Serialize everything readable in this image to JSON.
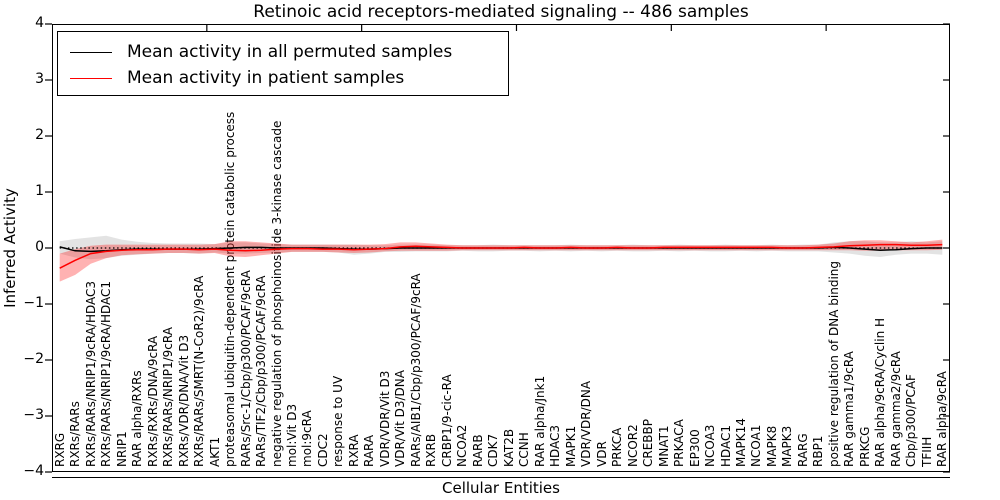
{
  "title": "Retinoic acid receptors-mediated signaling -- 486 samples",
  "axes": {
    "xlabel": "Cellular Entities",
    "ylabel": "Inferred Activity",
    "yticklabels": [
      "4",
      "3",
      "2",
      "1",
      "0",
      "−1",
      "−2",
      "−3",
      "−4"
    ],
    "ylim": [
      -4,
      4
    ],
    "grid": false
  },
  "legend": {
    "position": "upper left",
    "items": [
      {
        "label": "Mean activity in all permuted samples",
        "color": "#000000"
      },
      {
        "label": "Mean activity in patient samples",
        "color": "#ff0000"
      }
    ]
  },
  "chart_data": {
    "type": "line",
    "title": "Retinoic acid receptors-mediated signaling -- 486 samples",
    "xlabel": "Cellular Entities",
    "ylabel": "Inferred Activity",
    "ylim": [
      -4,
      4
    ],
    "zero_reference_line": {
      "y": 0,
      "style": "dotted",
      "color": "#000000"
    },
    "categories": [
      "RXRG",
      "RXRs/RARs",
      "RXRs/RARs/NRIP1/9cRA/HDAC3",
      "RXRs/RARs/NRIP1/9cRA/HDAC1",
      "NRIP1",
      "RAR alpha/RXRs",
      "RXRs/RXRs/DNA/9cRA",
      "RXRs/RARs/NRIP1/9cRA",
      "RXRs/VDR/DNA/Vit D3",
      "RXRs/RARs/SMRT(N-CoR2)/9cRA",
      "AKT1",
      "proteasomal ubiquitin-dependent protein catabolic process",
      "RARs/Src-1/Cbp/p300/PCAF/9cRA",
      "RARs/TIF2/Cbp/p300/PCAF/9cRA",
      "negative regulation of phosphoinositide 3-kinase cascade",
      "mol:Vit D3",
      "mol:9cRA",
      "CDC2",
      "response to UV",
      "RXRA",
      "RARA",
      "VDR/VDR/Vit D3",
      "VDR/Vit D3/DNA",
      "RARs/AIB1/Cbp/p300/PCAF/9cRA",
      "RXRB",
      "CRBP1/9-cic-RA",
      "NCOA2",
      "RARB",
      "CDK7",
      "KAT2B",
      "CCNH",
      "RAR alpha/Jnk1",
      "HDAC3",
      "MAPK1",
      "VDR/VDR/DNA",
      "VDR",
      "PRKCA",
      "NCOR2",
      "CREBBP",
      "MNAT1",
      "PRKACA",
      "EP300",
      "NCOA3",
      "HDAC1",
      "MAPK14",
      "NCOA1",
      "MAPK8",
      "MAPK3",
      "RARG",
      "RBP1",
      "positive regulation of DNA binding",
      "RAR gamma1/9cRA",
      "PRKCG",
      "RAR alpha/9cRA/Cyclin H",
      "RAR gamma2/9cRA",
      "Cbp/p300/PCAF",
      "TFIIH",
      "RAR alpha/9cRA"
    ],
    "series": [
      {
        "name": "Mean activity in all permuted samples",
        "color": "#000000",
        "band_color": "#999999",
        "band_opacity": 0.28,
        "mean": [
          0.02,
          -0.05,
          -0.06,
          -0.05,
          -0.03,
          -0.02,
          -0.02,
          -0.02,
          -0.02,
          -0.02,
          -0.01,
          0.0,
          0.01,
          0.01,
          0.0,
          0.0,
          0.0,
          0.0,
          -0.01,
          -0.02,
          -0.02,
          -0.01,
          0.0,
          0.0,
          0.0,
          0.0,
          0.0,
          0.0,
          0.0,
          0.0,
          0.0,
          0.0,
          0.0,
          0.0,
          0.0,
          0.0,
          0.0,
          0.0,
          0.0,
          0.0,
          0.0,
          0.0,
          0.0,
          0.0,
          0.0,
          0.0,
          0.0,
          0.0,
          0.0,
          0.0,
          0.01,
          0.0,
          -0.02,
          -0.04,
          -0.03,
          -0.01,
          0.0,
          0.0
        ],
        "upper": [
          0.12,
          0.16,
          0.19,
          0.22,
          0.15,
          0.11,
          0.09,
          0.08,
          0.08,
          0.08,
          0.07,
          0.1,
          0.1,
          0.08,
          0.07,
          0.06,
          0.06,
          0.06,
          0.06,
          0.06,
          0.05,
          0.05,
          0.06,
          0.06,
          0.06,
          0.05,
          0.05,
          0.05,
          0.06,
          0.05,
          0.05,
          0.05,
          0.05,
          0.06,
          0.05,
          0.05,
          0.05,
          0.06,
          0.05,
          0.05,
          0.06,
          0.05,
          0.05,
          0.06,
          0.05,
          0.05,
          0.06,
          0.05,
          0.06,
          0.06,
          0.1,
          0.12,
          0.12,
          0.1,
          0.1,
          0.12,
          0.1,
          0.12
        ],
        "lower": [
          -0.1,
          -0.17,
          -0.2,
          -0.18,
          -0.14,
          -0.12,
          -0.1,
          -0.09,
          -0.09,
          -0.1,
          -0.08,
          -0.1,
          -0.1,
          -0.09,
          -0.08,
          -0.07,
          -0.07,
          -0.07,
          -0.08,
          -0.12,
          -0.1,
          -0.07,
          -0.07,
          -0.06,
          -0.06,
          -0.06,
          -0.05,
          -0.06,
          -0.06,
          -0.05,
          -0.05,
          -0.06,
          -0.05,
          -0.06,
          -0.05,
          -0.06,
          -0.05,
          -0.06,
          -0.06,
          -0.05,
          -0.06,
          -0.05,
          -0.06,
          -0.06,
          -0.05,
          -0.06,
          -0.05,
          -0.06,
          -0.06,
          -0.06,
          -0.08,
          -0.1,
          -0.14,
          -0.16,
          -0.12,
          -0.1,
          -0.1,
          -0.12
        ]
      },
      {
        "name": "Mean activity in patient samples",
        "color": "#ff0000",
        "band_color": "#ff0000",
        "band_opacity": 0.3,
        "mean": [
          -0.36,
          -0.22,
          -0.1,
          -0.06,
          -0.04,
          -0.03,
          -0.03,
          -0.02,
          -0.02,
          -0.03,
          -0.02,
          -0.04,
          -0.05,
          -0.04,
          -0.02,
          -0.01,
          -0.01,
          -0.02,
          -0.02,
          -0.03,
          -0.02,
          -0.01,
          0.02,
          0.03,
          0.02,
          0.01,
          0.0,
          0.0,
          0.0,
          0.0,
          0.01,
          0.0,
          0.0,
          0.01,
          0.0,
          0.0,
          0.01,
          0.0,
          0.0,
          0.01,
          0.01,
          0.01,
          0.01,
          0.01,
          0.01,
          0.01,
          0.01,
          0.0,
          0.0,
          0.01,
          0.02,
          0.04,
          0.05,
          0.06,
          0.06,
          0.05,
          0.05,
          0.06
        ],
        "upper": [
          -0.1,
          -0.02,
          0.04,
          0.06,
          0.06,
          0.06,
          0.06,
          0.06,
          0.06,
          0.06,
          0.07,
          0.12,
          0.12,
          0.1,
          0.08,
          0.06,
          0.06,
          0.06,
          0.06,
          0.06,
          0.06,
          0.07,
          0.1,
          0.1,
          0.08,
          0.06,
          0.05,
          0.05,
          0.05,
          0.05,
          0.05,
          0.05,
          0.05,
          0.05,
          0.05,
          0.05,
          0.05,
          0.05,
          0.05,
          0.05,
          0.05,
          0.05,
          0.05,
          0.05,
          0.05,
          0.05,
          0.05,
          0.05,
          0.05,
          0.06,
          0.08,
          0.12,
          0.14,
          0.14,
          0.12,
          0.1,
          0.12,
          0.15
        ],
        "lower": [
          -0.6,
          -0.48,
          -0.28,
          -0.18,
          -0.13,
          -0.11,
          -0.1,
          -0.09,
          -0.09,
          -0.1,
          -0.09,
          -0.15,
          -0.16,
          -0.13,
          -0.1,
          -0.07,
          -0.07,
          -0.07,
          -0.08,
          -0.09,
          -0.08,
          -0.06,
          -0.05,
          -0.05,
          -0.05,
          -0.05,
          -0.04,
          -0.04,
          -0.04,
          -0.04,
          -0.04,
          -0.04,
          -0.04,
          -0.04,
          -0.04,
          -0.04,
          -0.04,
          -0.04,
          -0.04,
          -0.04,
          -0.04,
          -0.04,
          -0.04,
          -0.04,
          -0.04,
          -0.04,
          -0.04,
          -0.04,
          -0.04,
          -0.04,
          -0.04,
          -0.04,
          -0.05,
          -0.05,
          -0.04,
          -0.04,
          -0.04,
          -0.03
        ]
      }
    ]
  }
}
